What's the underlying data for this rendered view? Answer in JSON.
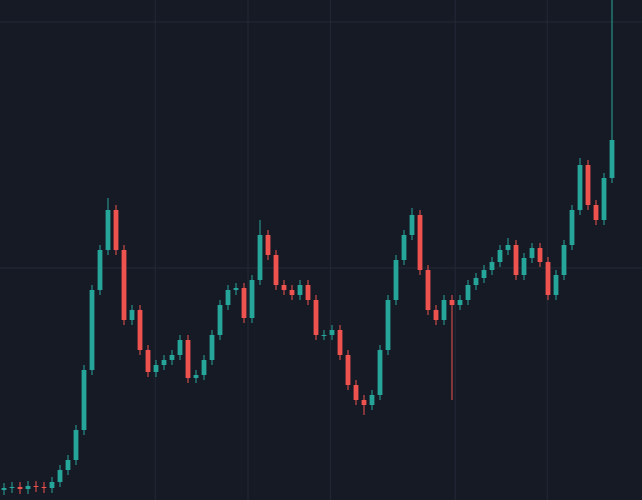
{
  "chart_data": {
    "type": "candlestick",
    "open": [
      10,
      12,
      13,
      11,
      14,
      13,
      12,
      18,
      30,
      40,
      70,
      130,
      210,
      250,
      290,
      250,
      180,
      190,
      150,
      128,
      135,
      140,
      145,
      160,
      122,
      125,
      140,
      165,
      195,
      210,
      212,
      182,
      220,
      265,
      245,
      215,
      210,
      205,
      215,
      200,
      165,
      165,
      170,
      145,
      115,
      100,
      95,
      105,
      150,
      200,
      240,
      265,
      285,
      230,
      190,
      180,
      200,
      195,
      200,
      215,
      222,
      230,
      238,
      250,
      255,
      225,
      242,
      252,
      238,
      205,
      225,
      255,
      290,
      335,
      295,
      280,
      322
    ],
    "high": [
      17,
      18,
      18,
      19,
      19,
      18,
      23,
      35,
      45,
      75,
      135,
      215,
      255,
      302,
      295,
      255,
      195,
      195,
      155,
      140,
      145,
      150,
      165,
      165,
      130,
      145,
      170,
      200,
      215,
      217,
      217,
      225,
      280,
      270,
      250,
      220,
      215,
      220,
      220,
      205,
      170,
      175,
      175,
      150,
      120,
      105,
      110,
      155,
      205,
      245,
      270,
      292,
      290,
      235,
      195,
      205,
      205,
      205,
      220,
      227,
      235,
      243,
      255,
      262,
      260,
      247,
      257,
      257,
      243,
      230,
      260,
      295,
      342,
      340,
      300,
      327,
      500
    ],
    "low": [
      5,
      7,
      6,
      6,
      8,
      7,
      7,
      13,
      25,
      35,
      65,
      125,
      205,
      245,
      245,
      175,
      175,
      145,
      123,
      123,
      130,
      135,
      140,
      117,
      117,
      120,
      135,
      160,
      190,
      205,
      177,
      177,
      215,
      240,
      210,
      205,
      200,
      200,
      195,
      160,
      160,
      160,
      140,
      110,
      95,
      85,
      90,
      100,
      145,
      195,
      235,
      260,
      225,
      185,
      175,
      175,
      100,
      190,
      195,
      210,
      217,
      225,
      233,
      245,
      220,
      220,
      237,
      233,
      200,
      200,
      220,
      250,
      285,
      290,
      275,
      275,
      317
    ],
    "close": [
      12,
      13,
      11,
      14,
      13,
      12,
      18,
      30,
      40,
      70,
      130,
      210,
      250,
      290,
      250,
      180,
      190,
      150,
      128,
      135,
      140,
      145,
      160,
      122,
      125,
      140,
      165,
      195,
      210,
      212,
      182,
      220,
      265,
      245,
      215,
      210,
      205,
      215,
      200,
      165,
      165,
      170,
      145,
      115,
      100,
      95,
      105,
      150,
      200,
      240,
      265,
      285,
      230,
      190,
      180,
      200,
      195,
      200,
      215,
      222,
      230,
      238,
      250,
      255,
      225,
      242,
      252,
      238,
      205,
      225,
      255,
      290,
      335,
      295,
      280,
      322,
      360
    ],
    "xlim": [
      -0.5,
      79.75
    ],
    "ylim": [
      0,
      500
    ],
    "xticks": [
      18.9,
      30.5,
      40.8,
      56.4,
      67.9
    ],
    "yticks": [
      232,
      478
    ],
    "grid": true,
    "up_color": "#26a69a",
    "down_color": "#ef5350",
    "background": "#161a25",
    "grid_color": "#232837"
  }
}
